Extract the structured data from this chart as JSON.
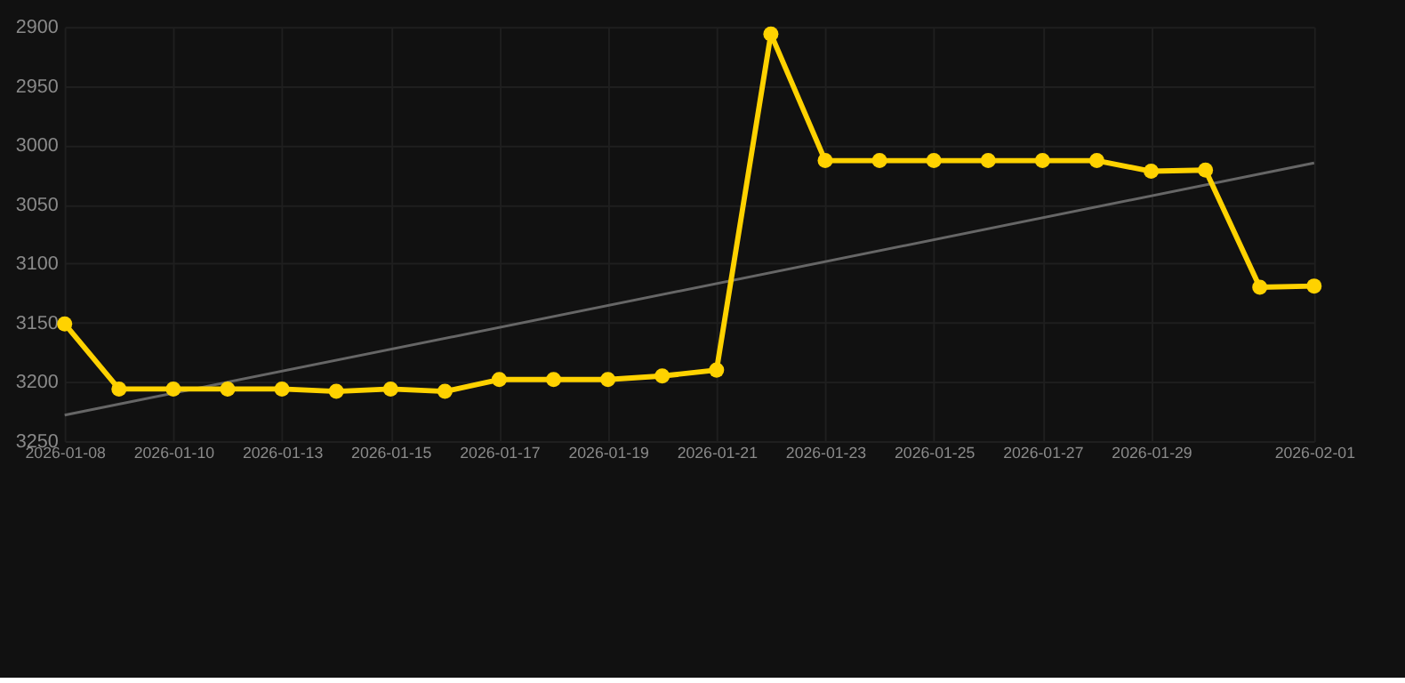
{
  "chart_data": {
    "type": "line",
    "categories": [
      "2026-01-08",
      null,
      "2026-01-10",
      null,
      "2026-01-13",
      null,
      "2026-01-15",
      null,
      "2026-01-17",
      null,
      "2026-01-19",
      null,
      "2026-01-21",
      null,
      "2026-01-23",
      null,
      "2026-01-25",
      null,
      "2026-01-27",
      null,
      "2026-01-29",
      null,
      null,
      "2026-02-01"
    ],
    "series": [
      {
        "color": "#ffd200",
        "marker": "circle",
        "values": [
          3151,
          3206,
          3206,
          3206,
          3206,
          3208,
          3206,
          3208,
          3198,
          3198,
          3198,
          3195,
          3190,
          2906,
          3013,
          3013,
          3013,
          3013,
          3013,
          3013,
          3022,
          3021,
          3120,
          3119
        ]
      },
      {
        "type": "line",
        "color": "#666666",
        "marker": "none",
        "values": [
          3228,
          null,
          null,
          null,
          null,
          null,
          null,
          null,
          null,
          null,
          null,
          null,
          null,
          null,
          null,
          null,
          null,
          null,
          null,
          null,
          null,
          null,
          null,
          3015
        ]
      }
    ],
    "ylim": [
      3250,
      2900
    ],
    "yticks": [
      2900,
      2950,
      3000,
      3050,
      3100,
      3150,
      3200,
      3250
    ],
    "grid": true
  }
}
